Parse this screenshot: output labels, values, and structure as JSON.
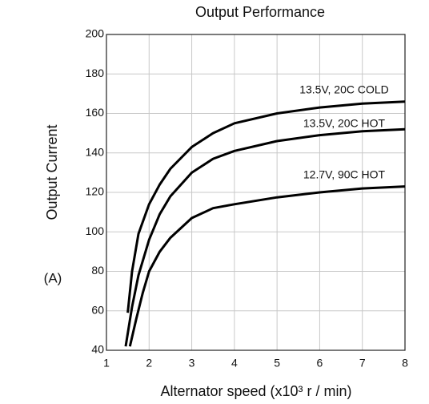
{
  "chart_data": {
    "type": "line",
    "title": "Output Performance",
    "xlabel": "Alternator speed (x10³ r / min)",
    "ylabel": "Output Current",
    "yunit": "(A)",
    "xlim": [
      1,
      8
    ],
    "xticks": [
      1,
      2,
      3,
      4,
      5,
      6,
      7,
      8
    ],
    "ylim": [
      40,
      200
    ],
    "yticks": [
      40,
      60,
      80,
      100,
      120,
      140,
      160,
      180,
      200
    ],
    "grid": true,
    "series": [
      {
        "name": "13.5V, 20C COLD",
        "color": "#000000",
        "x": [
          1.5,
          1.6,
          1.75,
          2,
          2.25,
          2.5,
          3,
          3.5,
          4,
          5,
          6,
          7,
          8
        ],
        "values": [
          59,
          80,
          99,
          114,
          124,
          132,
          143,
          150,
          155,
          160,
          163,
          165,
          166
        ]
      },
      {
        "name": "13.5V, 20C HOT",
        "color": "#000000",
        "x": [
          1.45,
          1.6,
          1.75,
          2,
          2.25,
          2.5,
          3,
          3.5,
          4,
          5,
          6,
          7,
          8
        ],
        "values": [
          42,
          62,
          78,
          96,
          109,
          118,
          130,
          137,
          141,
          146,
          149,
          151,
          152
        ]
      },
      {
        "name": "12.7V, 90C HOT",
        "color": "#000000",
        "x": [
          1.55,
          1.7,
          1.85,
          2,
          2.25,
          2.5,
          3,
          3.5,
          4,
          5,
          6,
          7,
          8
        ],
        "values": [
          42,
          56,
          69,
          80,
          90,
          97,
          107,
          112,
          114,
          117.5,
          120,
          122,
          123
        ]
      }
    ]
  }
}
